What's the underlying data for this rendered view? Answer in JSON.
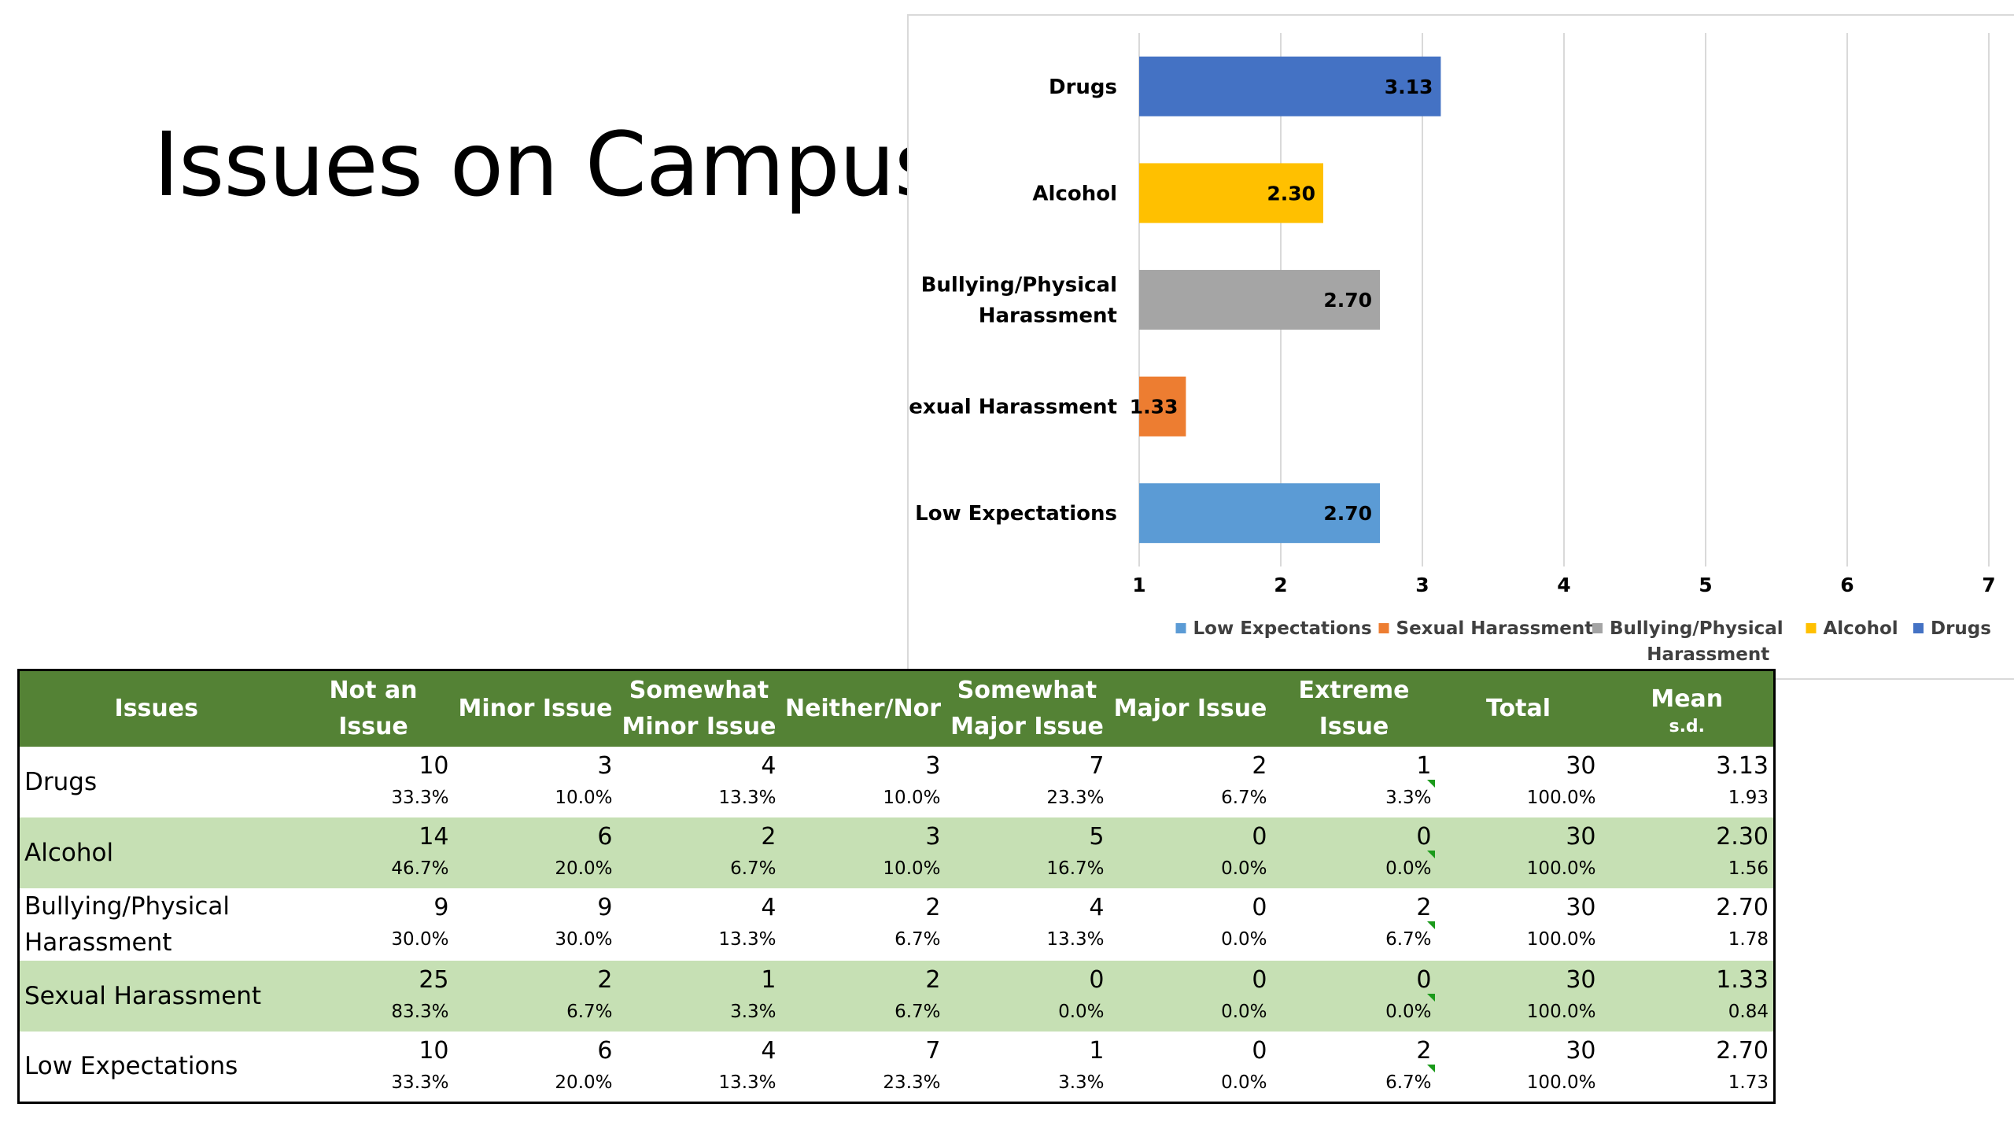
{
  "slide": {
    "title": "Issues on Campus"
  },
  "chart_data": {
    "type": "bar",
    "orientation": "horizontal",
    "categories": [
      "Drugs",
      "Alcohol",
      "Bullying/Physical Harassment",
      "Sexual Harassment",
      "Low Expectations"
    ],
    "category_lines": [
      [
        "Drugs"
      ],
      [
        "Alcohol"
      ],
      [
        "Bullying/Physical",
        "Harassment"
      ],
      [
        "Sexual Harassment"
      ],
      [
        "Low Expectations"
      ]
    ],
    "values": [
      3.13,
      2.3,
      2.7,
      1.33,
      2.7
    ],
    "data_labels": [
      "3.13",
      "2.30",
      "2.70",
      "1.33",
      "2.70"
    ],
    "colors": [
      "#4472c4",
      "#ffc000",
      "#a5a5a5",
      "#ed7d31",
      "#5b9bd5"
    ],
    "xlim": [
      1,
      7
    ],
    "x_ticks": [
      1,
      2,
      3,
      4,
      5,
      6,
      7
    ],
    "grid": "vertical",
    "legend": {
      "placement": "bottom",
      "entries": [
        {
          "lines": [
            "Low Expectations"
          ],
          "color": "#5b9bd5"
        },
        {
          "lines": [
            "Sexual Harassment"
          ],
          "color": "#ed7d31"
        },
        {
          "lines": [
            "Bullying/Physical",
            "Harassment"
          ],
          "color": "#a5a5a5"
        },
        {
          "lines": [
            "Alcohol"
          ],
          "color": "#ffc000"
        },
        {
          "lines": [
            "Drugs"
          ],
          "color": "#4472c4"
        }
      ]
    },
    "title": "",
    "xlabel": "",
    "ylabel": ""
  },
  "table": {
    "header_color": "#548235",
    "shade_color": "#c6e0b4",
    "columns": [
      {
        "lines": [
          "Issues"
        ]
      },
      {
        "lines": [
          "Not an",
          "Issue"
        ]
      },
      {
        "lines": [
          "Minor Issue"
        ]
      },
      {
        "lines": [
          "Somewhat",
          "Minor Issue"
        ]
      },
      {
        "lines": [
          "Neither/Nor"
        ]
      },
      {
        "lines": [
          "Somewhat",
          "Major Issue"
        ]
      },
      {
        "lines": [
          "Major Issue"
        ]
      },
      {
        "lines": [
          "Extreme",
          "Issue"
        ]
      },
      {
        "lines": [
          "Total"
        ]
      },
      {
        "lines": [
          "Mean"
        ],
        "sub": "s.d."
      }
    ],
    "rows": [
      {
        "issue_lines": [
          "Drugs"
        ],
        "shaded": false,
        "counts": [
          "10",
          "3",
          "4",
          "3",
          "7",
          "2",
          "1",
          "30"
        ],
        "pcts": [
          "33.3%",
          "10.0%",
          "13.3%",
          "10.0%",
          "23.3%",
          "6.7%",
          "3.3%",
          "100.0%"
        ],
        "mean": "3.13",
        "sd": "1.93"
      },
      {
        "issue_lines": [
          "Alcohol"
        ],
        "shaded": true,
        "counts": [
          "14",
          "6",
          "2",
          "3",
          "5",
          "0",
          "0",
          "30"
        ],
        "pcts": [
          "46.7%",
          "20.0%",
          "6.7%",
          "10.0%",
          "16.7%",
          "0.0%",
          "0.0%",
          "100.0%"
        ],
        "mean": "2.30",
        "sd": "1.56"
      },
      {
        "issue_lines": [
          "Bullying/Physical",
          "Harassment"
        ],
        "shaded": false,
        "counts": [
          "9",
          "9",
          "4",
          "2",
          "4",
          "0",
          "2",
          "30"
        ],
        "pcts": [
          "30.0%",
          "30.0%",
          "13.3%",
          "6.7%",
          "13.3%",
          "0.0%",
          "6.7%",
          "100.0%"
        ],
        "mean": "2.70",
        "sd": "1.78"
      },
      {
        "issue_lines": [
          "Sexual Harassment"
        ],
        "shaded": true,
        "counts": [
          "25",
          "2",
          "1",
          "2",
          "0",
          "0",
          "0",
          "30"
        ],
        "pcts": [
          "83.3%",
          "6.7%",
          "3.3%",
          "6.7%",
          "0.0%",
          "0.0%",
          "0.0%",
          "100.0%"
        ],
        "mean": "1.33",
        "sd": "0.84"
      },
      {
        "issue_lines": [
          "Low Expectations"
        ],
        "shaded": false,
        "counts": [
          "10",
          "6",
          "4",
          "7",
          "1",
          "0",
          "2",
          "30"
        ],
        "pcts": [
          "33.3%",
          "20.0%",
          "13.3%",
          "23.3%",
          "3.3%",
          "0.0%",
          "6.7%",
          "100.0%"
        ],
        "mean": "2.70",
        "sd": "1.73"
      }
    ]
  }
}
